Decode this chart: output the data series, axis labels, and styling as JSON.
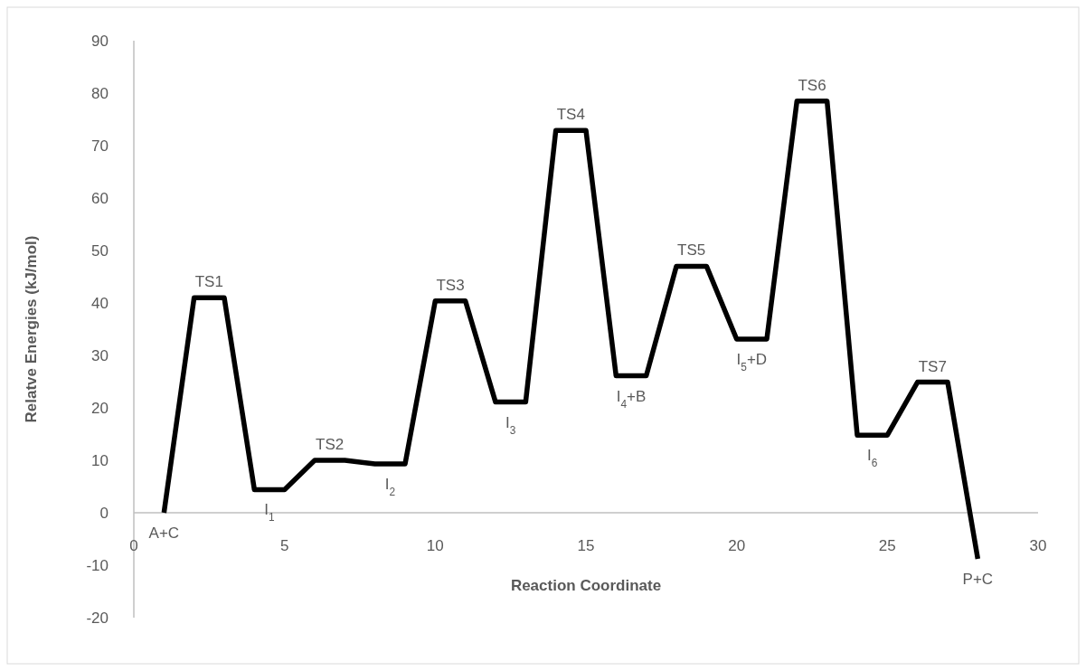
{
  "chart_data": {
    "type": "line",
    "xlabel": "Reaction Coordinate",
    "ylabel": "Relatve Energies (kJ/mol)",
    "xlim": [
      0,
      30
    ],
    "ylim": [
      -20,
      90
    ],
    "xticks": [
      0,
      5,
      10,
      15,
      20,
      25,
      30
    ],
    "yticks": [
      -20,
      -10,
      0,
      10,
      20,
      30,
      40,
      50,
      60,
      70,
      80,
      90
    ],
    "marker": "none",
    "line_style": "solid",
    "series": [
      {
        "color": "#000000",
        "x": [
          1,
          2,
          3,
          4,
          5,
          6,
          7,
          8,
          9,
          10,
          11,
          12,
          13,
          14,
          15,
          16,
          17,
          18,
          19,
          20,
          21,
          22,
          23,
          24,
          25,
          26,
          27,
          28
        ],
        "values": [
          0,
          41,
          41,
          4.4,
          4.4,
          10,
          10,
          9.3,
          9.3,
          40.4,
          40.4,
          21.1,
          21.1,
          72.9,
          72.9,
          26.1,
          26.1,
          47,
          47,
          33.1,
          33.1,
          78.5,
          78.5,
          14.8,
          14.8,
          24.9,
          24.9,
          -8.8
        ]
      }
    ],
    "annotations": [
      {
        "text": "A+C",
        "x": 1,
        "y": 0
      },
      {
        "text": "TS1",
        "x": 2.5,
        "y": 41
      },
      {
        "text": "I$_{1}$",
        "x": 4.5,
        "y": 4.4
      },
      {
        "text": "TS2",
        "x": 6.5,
        "y": 10
      },
      {
        "text": "I$_{2}$",
        "x": 8.5,
        "y": 9.3
      },
      {
        "text": "TS3",
        "x": 10.5,
        "y": 40.4
      },
      {
        "text": "I$_{3}$",
        "x": 12.5,
        "y": 21.1
      },
      {
        "text": "TS4",
        "x": 14.5,
        "y": 72.9
      },
      {
        "text": "I$_{4}$+B",
        "x": 16.5,
        "y": 26.1
      },
      {
        "text": "TS5",
        "x": 18.5,
        "y": 47
      },
      {
        "text": "I$_{5}$+D",
        "x": 20.5,
        "y": 33.1
      },
      {
        "text": "TS6",
        "x": 22.5,
        "y": 78.5
      },
      {
        "text": "I$_{6}$",
        "x": 24.5,
        "y": 14.8
      },
      {
        "text": "TS7",
        "x": 26.5,
        "y": 24.9
      },
      {
        "text": "P+C",
        "x": 28,
        "y": -8.8
      }
    ]
  }
}
